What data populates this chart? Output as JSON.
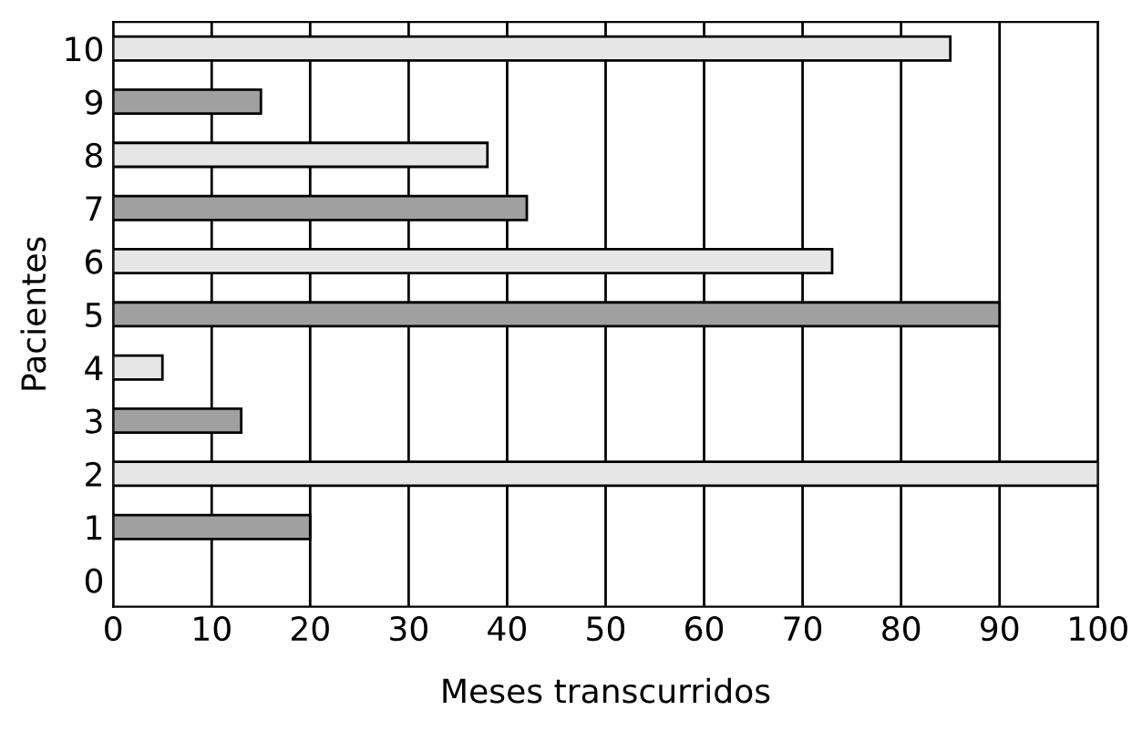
{
  "chart_data": {
    "type": "bar",
    "orientation": "horizontal",
    "xlabel": "Meses transcurridos",
    "ylabel": "Pacientes",
    "categories": [
      "10",
      "9",
      "8",
      "7",
      "6",
      "5",
      "4",
      "3",
      "2",
      "1",
      "0"
    ],
    "values": [
      85,
      15,
      38,
      42,
      73,
      90,
      5,
      13,
      100,
      20,
      null
    ],
    "colors": [
      "#e6e6e6",
      "#a0a0a0",
      "#e6e6e6",
      "#a0a0a0",
      "#e6e6e6",
      "#a0a0a0",
      "#e6e6e6",
      "#a0a0a0",
      "#e6e6e6",
      "#a0a0a0",
      "#a0a0a0"
    ],
    "xlim": [
      0,
      100
    ],
    "xticks": [
      0,
      10,
      20,
      30,
      40,
      50,
      60,
      70,
      80,
      90,
      100
    ],
    "grid": "x"
  }
}
